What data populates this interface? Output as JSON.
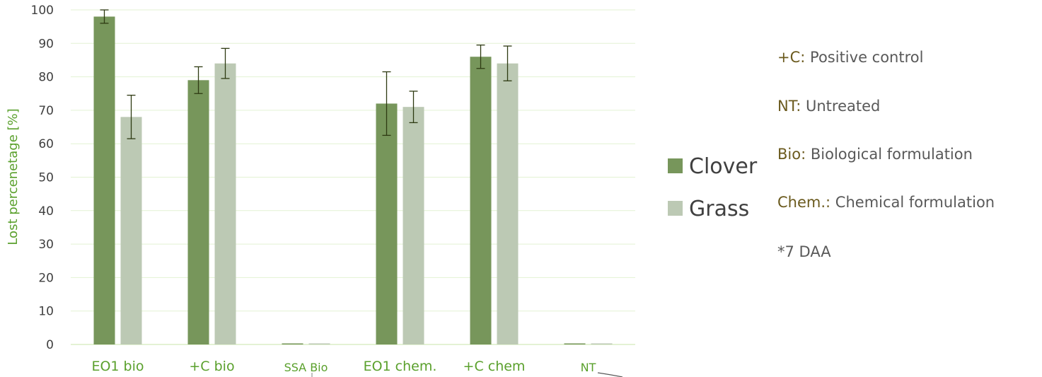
{
  "chart_data": {
    "type": "bar",
    "categories": [
      "EO1 bio",
      "+C bio",
      "SSA Bio",
      "EO1 chem.",
      "+C chem",
      "NT"
    ],
    "series": [
      {
        "name": "Clover",
        "color": "#77965b",
        "values": [
          98,
          79,
          0,
          72,
          86,
          0
        ],
        "errors": [
          2,
          4,
          0,
          9.5,
          3.5,
          0
        ]
      },
      {
        "name": "Grass",
        "color": "#bcc9b4",
        "values": [
          68,
          84,
          0,
          71,
          84,
          0
        ],
        "errors": [
          6.5,
          4.5,
          0,
          4.7,
          5.2,
          0
        ]
      }
    ],
    "ylabel": "Lost percenetage [%]",
    "ylim": [
      0,
      100
    ],
    "yticks": [
      "0",
      "10",
      "20",
      "30",
      "40",
      "50",
      "60",
      "70",
      "80",
      "90",
      "100"
    ],
    "grid": true,
    "legend_position": "right"
  },
  "notes": [
    {
      "key": "+C:",
      "text": "Positive control"
    },
    {
      "key": "NT:",
      "text": "Untreated"
    },
    {
      "key": "Bio:",
      "text": "Biological formulation"
    },
    {
      "key": "Chem.:",
      "text": "Chemical formulation"
    },
    {
      "key": "",
      "text": "*7 DAA"
    }
  ]
}
